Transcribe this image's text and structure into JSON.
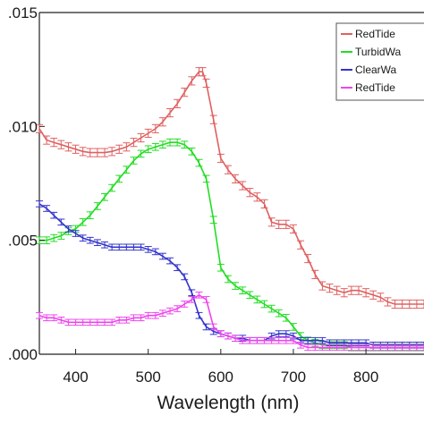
{
  "chart_data": {
    "type": "line",
    "title": "",
    "xlabel": "Wavelength (nm)",
    "ylabel": "",
    "xlim": [
      350,
      880
    ],
    "ylim": [
      0,
      0.015
    ],
    "x_ticks": [
      400,
      500,
      600,
      700,
      800
    ],
    "x_tick_labels": [
      "400",
      "500",
      "600",
      "700",
      "800"
    ],
    "y_ticks": [
      0,
      0.005,
      0.01,
      0.015
    ],
    "y_tick_labels": [
      ".000",
      ".005",
      ".010",
      ".015"
    ],
    "grid": false,
    "legend_position": "top-right",
    "error_bars": true,
    "series": [
      {
        "name": "RedTide",
        "color": "#e06060",
        "x": [
          350,
          360,
          370,
          380,
          390,
          400,
          410,
          420,
          430,
          440,
          450,
          460,
          470,
          480,
          490,
          500,
          510,
          520,
          530,
          540,
          550,
          560,
          570,
          575,
          580,
          590,
          600,
          610,
          620,
          630,
          640,
          650,
          660,
          670,
          680,
          690,
          700,
          710,
          720,
          730,
          740,
          750,
          760,
          770,
          780,
          790,
          800,
          810,
          820,
          830,
          840,
          850,
          860,
          870,
          880
        ],
        "y": [
          0.0099,
          0.0094,
          0.0093,
          0.0092,
          0.0091,
          0.009,
          0.0089,
          0.00885,
          0.00885,
          0.00885,
          0.0089,
          0.009,
          0.0091,
          0.0093,
          0.0095,
          0.0097,
          0.0099,
          0.0102,
          0.0106,
          0.011,
          0.0115,
          0.012,
          0.0124,
          0.0124,
          0.0119,
          0.0103,
          0.0086,
          0.0081,
          0.0077,
          0.0074,
          0.0071,
          0.0069,
          0.0066,
          0.0058,
          0.0057,
          0.0057,
          0.0055,
          0.0048,
          0.0042,
          0.0035,
          0.003,
          0.0029,
          0.0028,
          0.0027,
          0.0028,
          0.0028,
          0.0027,
          0.0026,
          0.0025,
          0.0023,
          0.0022,
          0.0022,
          0.0022,
          0.0022,
          0.0022
        ],
        "err": 0.00018
      },
      {
        "name": "TurbidWa",
        "color": "#22dd22",
        "x": [
          350,
          360,
          370,
          380,
          390,
          400,
          410,
          420,
          430,
          440,
          450,
          460,
          470,
          480,
          490,
          500,
          510,
          520,
          530,
          540,
          550,
          560,
          570,
          580,
          590,
          600,
          610,
          620,
          630,
          640,
          650,
          660,
          670,
          680,
          690,
          700,
          710,
          720,
          730,
          740,
          750,
          760,
          770,
          780,
          790,
          800,
          810,
          820,
          830,
          840,
          850,
          860,
          870,
          880
        ],
        "y": [
          0.005,
          0.005,
          0.0051,
          0.0052,
          0.0054,
          0.0055,
          0.0058,
          0.0061,
          0.0065,
          0.0069,
          0.0073,
          0.0077,
          0.0081,
          0.0085,
          0.0088,
          0.009,
          0.0091,
          0.0092,
          0.0093,
          0.0093,
          0.0092,
          0.0089,
          0.0084,
          0.0077,
          0.0059,
          0.0038,
          0.0033,
          0.003,
          0.0028,
          0.0026,
          0.0024,
          0.0022,
          0.002,
          0.0018,
          0.0016,
          0.0012,
          0.0008,
          0.0006,
          0.0005,
          0.0004,
          0.0004,
          0.0004,
          0.0004,
          0.0003,
          0.0003,
          0.0003,
          0.0003,
          0.0003,
          0.0003,
          0.0003,
          0.0003,
          0.0003,
          0.0003,
          0.0003
        ],
        "err": 0.00015
      },
      {
        "name": "ClearWa",
        "color": "#3333cc",
        "x": [
          350,
          360,
          370,
          380,
          390,
          400,
          410,
          420,
          430,
          440,
          450,
          460,
          470,
          480,
          490,
          500,
          510,
          520,
          530,
          540,
          550,
          560,
          570,
          580,
          590,
          600,
          610,
          620,
          630,
          640,
          650,
          660,
          670,
          680,
          690,
          700,
          710,
          720,
          730,
          740,
          750,
          760,
          770,
          780,
          790,
          800,
          810,
          820,
          830,
          840,
          850,
          860,
          870,
          880
        ],
        "y": [
          0.0066,
          0.0064,
          0.0061,
          0.0058,
          0.0055,
          0.0053,
          0.0051,
          0.005,
          0.0049,
          0.0048,
          0.0047,
          0.0047,
          0.0047,
          0.0047,
          0.0047,
          0.0046,
          0.0045,
          0.0043,
          0.0041,
          0.0038,
          0.0034,
          0.0027,
          0.0017,
          0.0012,
          0.001,
          0.0009,
          0.0008,
          0.0007,
          0.0007,
          0.0006,
          0.0006,
          0.0006,
          0.0008,
          0.0009,
          0.0009,
          0.0008,
          0.0006,
          0.0006,
          0.0006,
          0.0006,
          0.0005,
          0.0005,
          0.0005,
          0.0005,
          0.0005,
          0.0005,
          0.0004,
          0.0004,
          0.0004,
          0.0004,
          0.0004,
          0.0004,
          0.0004,
          0.0004
        ],
        "err": 0.00013
      },
      {
        "name": "RedTide",
        "color": "#ee44ee",
        "x": [
          350,
          360,
          370,
          380,
          390,
          400,
          410,
          420,
          430,
          440,
          450,
          460,
          470,
          480,
          490,
          500,
          510,
          520,
          530,
          540,
          550,
          560,
          570,
          580,
          590,
          600,
          610,
          620,
          630,
          640,
          650,
          660,
          670,
          680,
          690,
          700,
          710,
          720,
          730,
          740,
          750,
          760,
          770,
          780,
          790,
          800,
          810,
          820,
          830,
          840,
          850,
          860,
          870,
          880
        ],
        "y": [
          0.0017,
          0.0016,
          0.0016,
          0.0015,
          0.0014,
          0.0014,
          0.0014,
          0.0014,
          0.0014,
          0.0014,
          0.0014,
          0.0015,
          0.0015,
          0.0016,
          0.0016,
          0.0017,
          0.0017,
          0.0018,
          0.0019,
          0.002,
          0.0022,
          0.0024,
          0.0026,
          0.0024,
          0.0012,
          0.0009,
          0.0008,
          0.0007,
          0.0006,
          0.0006,
          0.0006,
          0.0006,
          0.0006,
          0.0006,
          0.0006,
          0.0006,
          0.0004,
          0.0003,
          0.0003,
          0.0003,
          0.0003,
          0.0003,
          0.0003,
          0.0003,
          0.0003,
          0.0003,
          0.0003,
          0.0003,
          0.0003,
          0.0003,
          0.0003,
          0.0003,
          0.0003,
          0.0003
        ],
        "err": 0.00013
      }
    ]
  }
}
